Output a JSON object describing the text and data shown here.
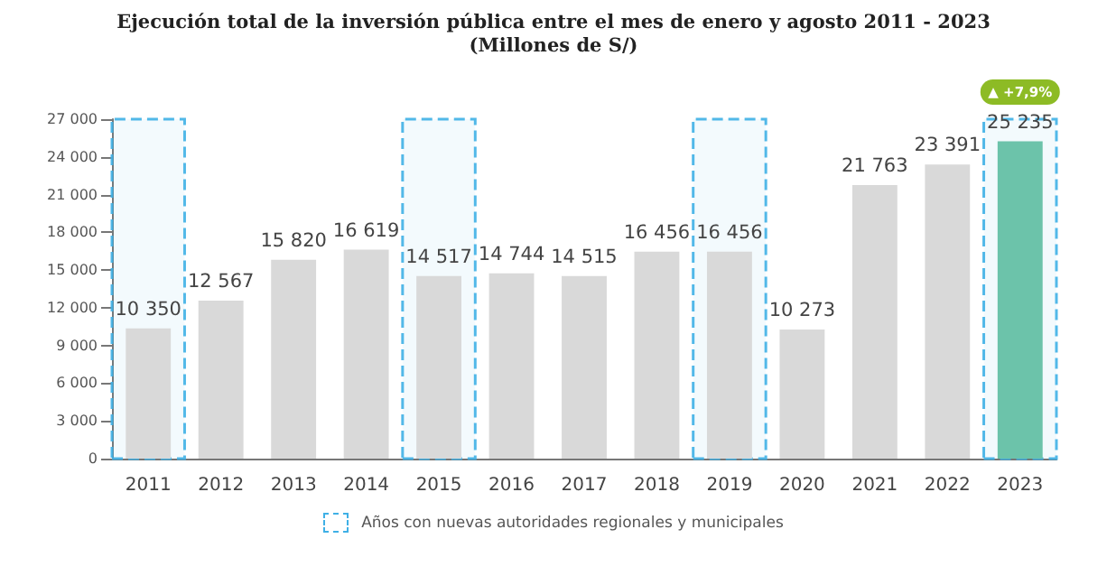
{
  "chart_data": {
    "type": "bar",
    "title": "Ejecución total de la inversión pública entre el mes de enero y agosto 2011 - 2023",
    "subtitle": "(Millones de S/)",
    "categories": [
      "2011",
      "2012",
      "2013",
      "2014",
      "2015",
      "2016",
      "2017",
      "2018",
      "2019",
      "2020",
      "2021",
      "2022",
      "2023"
    ],
    "values": [
      10350,
      12567,
      15820,
      16619,
      14517,
      14744,
      14515,
      16456,
      16456,
      10273,
      21763,
      23391,
      25235
    ],
    "value_labels": [
      "10 350",
      "12 567",
      "15 820",
      "16 619",
      "14 517",
      "14 744",
      "14 515",
      "16 456",
      "16 456",
      "10 273",
      "21 763",
      "23 391",
      "25 235"
    ],
    "colors": [
      "#d9d9d9",
      "#d9d9d9",
      "#d9d9d9",
      "#d9d9d9",
      "#d9d9d9",
      "#d9d9d9",
      "#d9d9d9",
      "#d9d9d9",
      "#d9d9d9",
      "#d9d9d9",
      "#d9d9d9",
      "#d9d9d9",
      "#6cc3aa"
    ],
    "ylim": [
      0,
      27000
    ],
    "yticks": [
      0,
      {
        "value": 3000,
        "label": "3 000"
      },
      {
        "value": 6000,
        "label": "6 000"
      },
      {
        "value": 9000,
        "label": "9 000"
      },
      {
        "value": 12000,
        "label": "12 000"
      },
      {
        "value": 15000,
        "label": "15 000"
      },
      {
        "value": 18000,
        "label": "18 000"
      },
      {
        "value": 21000,
        "label": "21 000"
      },
      {
        "value": 24000,
        "label": "24 000"
      },
      {
        "value": 27000,
        "label": "27 000"
      }
    ],
    "bands": [
      {
        "axis": "x",
        "from": "2011",
        "to": "2011",
        "label": "Años con nuevas autoridades regionales y municipales",
        "color": "#3fb0e6"
      },
      {
        "axis": "x",
        "from": "2015",
        "to": "2015",
        "color": "#3fb0e6"
      },
      {
        "axis": "x",
        "from": "2019",
        "to": "2019",
        "color": "#3fb0e6"
      },
      {
        "axis": "x",
        "from": "2023",
        "to": "2023",
        "color": "#3fb0e6"
      }
    ],
    "annotations": [
      "▲ +7,9%"
    ],
    "grid": false,
    "legend": "bottom"
  }
}
